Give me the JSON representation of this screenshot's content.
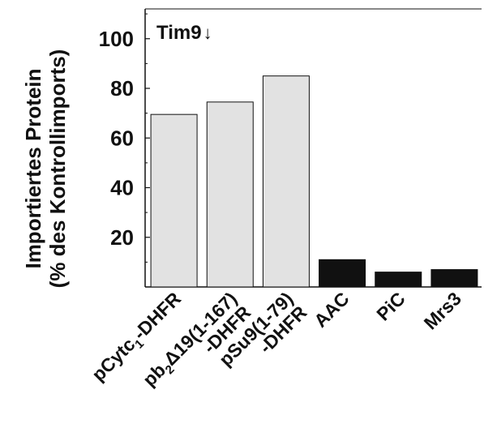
{
  "chart_data": {
    "type": "bar",
    "title": "Tim9",
    "title_symbol": "↓",
    "ylabel_line1": "Importiertes Protein",
    "ylabel_line2": "(% des Kontrollimports)",
    "xlabel": "",
    "ylim": [
      0,
      112
    ],
    "yticks": [
      20,
      40,
      60,
      80,
      100
    ],
    "grid": false,
    "categories": [
      {
        "line1_main": "pCytc",
        "line1_sub": "1",
        "line1_rest": "-DHFR",
        "line2": ""
      },
      {
        "line1_main": "pb",
        "line1_sub": "2",
        "line1_rest": "Δ19(1-167)",
        "line2": "-DHFR"
      },
      {
        "line1_main": "pSu9(1-79)",
        "line1_sub": "",
        "line1_rest": "",
        "line2": "-DHFR"
      },
      {
        "line1_main": "AAC",
        "line1_sub": "",
        "line1_rest": "",
        "line2": ""
      },
      {
        "line1_main": "PiC",
        "line1_sub": "",
        "line1_rest": "",
        "line2": ""
      },
      {
        "line1_main": "Mrs3",
        "line1_sub": "",
        "line1_rest": "",
        "line2": ""
      }
    ],
    "values": [
      69.5,
      74.5,
      85,
      11,
      6,
      7
    ],
    "colors": [
      "#e2e2e2",
      "#e2e2e2",
      "#e2e2e2",
      "#111111",
      "#111111",
      "#111111"
    ]
  }
}
